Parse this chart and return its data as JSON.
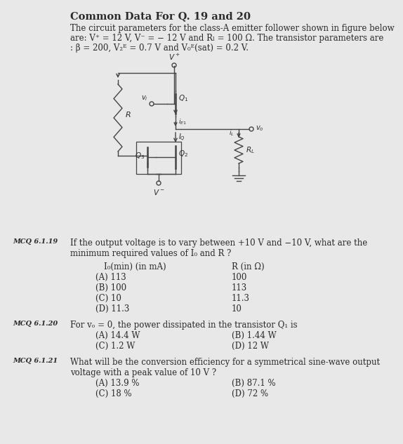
{
  "title": "Common Data For Q. 19 and 20",
  "bg_color": "#e8e8e8",
  "text_color": "#2a2a2a",
  "dark_color": "#3a3a3a",
  "intro_line1": "The circuit parameters for the class-A emitter follower shown in figure below",
  "intro_line2": "are: V⁺ = 12 V, V⁻ = − 12 V and Rₗ = 100 Ω. The transistor parameters are",
  "intro_line3": ": β = 200, V₂ᴱ = 0.7 V and V₀ᴱ(sat) = 0.2 V.",
  "mcq_label_1": "MCQ 6.1.19",
  "mcq_q1_line1": "If the output voltage is to vary between +10 V and −10 V, what are the",
  "mcq_q1_line2": "minimum required values of I₀ and R ?",
  "mcq_col1_header": "I₀(min) (in mA)",
  "mcq_col2_header": "R (in Ω)",
  "mcq_q1_options": [
    [
      "(A) 113",
      "100"
    ],
    [
      "(B) 100",
      "113"
    ],
    [
      "(C) 10",
      "11.3"
    ],
    [
      "(D) 11.3",
      "10"
    ]
  ],
  "mcq_label_2": "MCQ 6.1.20",
  "mcq_q2": "For vₒ = 0, the power dissipated in the transistor Q₁ is",
  "mcq_q2_options": [
    [
      "(A) 14.4 W",
      "(B) 1.44 W"
    ],
    [
      "(C) 1.2 W",
      "(D) 12 W"
    ]
  ],
  "mcq_label_3": "MCQ 6.1.21",
  "mcq_q3_line1": "What will be the conversion efficiency for a symmetrical sine-wave output",
  "mcq_q3_line2": "voltage with a peak value of 10 V ?",
  "mcq_q3_options": [
    [
      "(A) 13.9 %",
      "(B) 87.1 %"
    ],
    [
      "(C) 18 %",
      "(D) 72 %"
    ]
  ]
}
